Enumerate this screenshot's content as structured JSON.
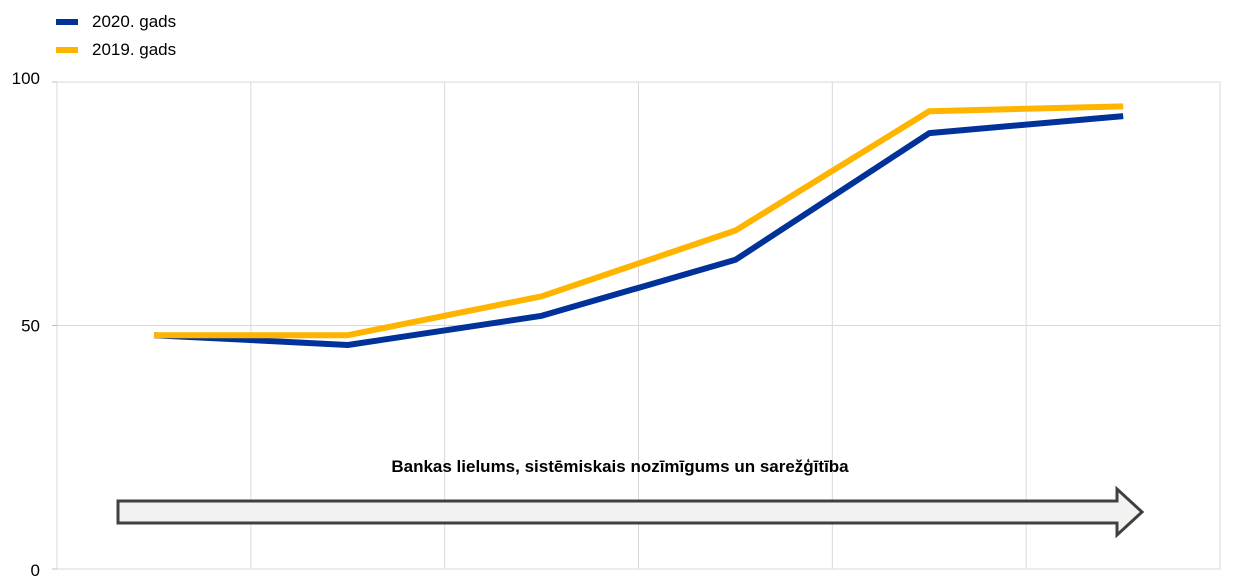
{
  "legend": [
    {
      "label": "2020. gads",
      "color": "#003299"
    },
    {
      "label": "2019. gads",
      "color": "#FFB400"
    }
  ],
  "annotation": {
    "text": "Bankas lielums, sistēmiskais  nozīmīgums un sarežģītība",
    "arrow_direction": "right"
  },
  "chart_data": {
    "type": "line",
    "title": "",
    "xlabel": "",
    "ylabel": "",
    "ylim": [
      0,
      100
    ],
    "yticks": [
      0,
      50,
      100
    ],
    "grid": true,
    "legend_position": "top-left",
    "x": [
      1,
      2,
      3,
      4,
      5,
      6
    ],
    "series": [
      {
        "name": "2020. gads",
        "color": "#003299",
        "values": [
          48,
          46,
          52,
          63.5,
          89.5,
          93
        ]
      },
      {
        "name": "2019. gads",
        "color": "#FFB400",
        "values": [
          48,
          48,
          56,
          69.5,
          94,
          95
        ]
      }
    ]
  }
}
